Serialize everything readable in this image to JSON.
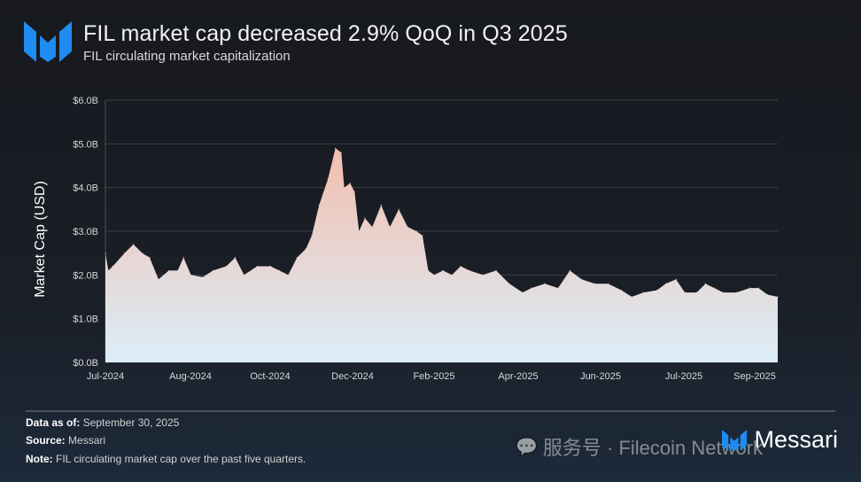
{
  "header": {
    "title": "FIL market cap decreased 2.9% QoQ in Q3 2025",
    "subtitle": "FIL circulating market capitalization",
    "logo": "Messari"
  },
  "chart_data": {
    "type": "area",
    "title": "FIL market cap decreased 2.9% QoQ in Q3 2025",
    "subtitle": "FIL circulating market capitalization",
    "xlabel": "",
    "ylabel": "Market Cap (USD)",
    "ylim": [
      0,
      6
    ],
    "y_unit": "USD billions",
    "y_ticks": [
      "$0.0B",
      "$1.0B",
      "$2.0B",
      "$3.0B",
      "$4.0B",
      "$5.0B",
      "$6.0B"
    ],
    "x_ticks": [
      "Jul-2024",
      "Aug-2024",
      "Oct-2024",
      "Dec-2024",
      "Feb-2025",
      "Apr-2025",
      "Jun-2025",
      "Jul-2025",
      "Sep-2025"
    ],
    "xlim": [
      "2024-07-01",
      "2025-09-30"
    ],
    "grid": true,
    "fill_colors": {
      "top": "#f2bfae",
      "bottom": "#dcedf8"
    },
    "series": [
      {
        "x": [
          "2024-07-01",
          "2024-07-03",
          "2024-07-06",
          "2024-07-14",
          "2024-07-20",
          "2024-07-26",
          "2024-07-31",
          "2024-08-06",
          "2024-08-13",
          "2024-08-19",
          "2024-08-23",
          "2024-08-28",
          "2024-09-05",
          "2024-09-12",
          "2024-09-21",
          "2024-09-27",
          "2024-10-03",
          "2024-10-12",
          "2024-10-21",
          "2024-10-27",
          "2024-11-02",
          "2024-11-08",
          "2024-11-14",
          "2024-11-18",
          "2024-11-23",
          "2024-11-29",
          "2024-12-04",
          "2024-12-08",
          "2024-12-10",
          "2024-12-14",
          "2024-12-17",
          "2024-12-20",
          "2024-12-24",
          "2024-12-29",
          "2025-01-04",
          "2025-01-10",
          "2025-01-16",
          "2025-01-22",
          "2025-01-28",
          "2025-02-01",
          "2025-02-05",
          "2025-02-09",
          "2025-02-15",
          "2025-02-21",
          "2025-02-27",
          "2025-03-05",
          "2025-03-14",
          "2025-03-23",
          "2025-04-01",
          "2025-04-10",
          "2025-04-16",
          "2025-04-25",
          "2025-05-04",
          "2025-05-12",
          "2025-05-20",
          "2025-05-29",
          "2025-06-07",
          "2025-06-16",
          "2025-06-23",
          "2025-07-01",
          "2025-07-10",
          "2025-07-16",
          "2025-07-23",
          "2025-07-29",
          "2025-08-06",
          "2025-08-12",
          "2025-08-18",
          "2025-08-24",
          "2025-09-02",
          "2025-09-11",
          "2025-09-17",
          "2025-09-23",
          "2025-09-30"
        ],
        "y": [
          2.5,
          2.1,
          2.2,
          2.5,
          2.7,
          2.5,
          2.4,
          1.9,
          2.1,
          2.1,
          2.4,
          2.0,
          1.95,
          2.1,
          2.2,
          2.4,
          2.0,
          2.2,
          2.2,
          2.1,
          2.0,
          2.4,
          2.6,
          2.9,
          3.6,
          4.2,
          4.9,
          4.8,
          4.0,
          4.1,
          3.9,
          3.0,
          3.3,
          3.1,
          3.6,
          3.1,
          3.5,
          3.1,
          3.0,
          2.9,
          2.1,
          2.0,
          2.1,
          2.0,
          2.2,
          2.1,
          2.0,
          2.1,
          1.8,
          1.6,
          1.7,
          1.8,
          1.7,
          2.1,
          1.9,
          1.8,
          1.8,
          1.65,
          1.5,
          1.6,
          1.65,
          1.8,
          1.9,
          1.6,
          1.6,
          1.8,
          1.7,
          1.6,
          1.6,
          1.7,
          1.7,
          1.55,
          1.5
        ]
      }
    ]
  },
  "footer": {
    "data_as_of_label": "Data as of:",
    "data_as_of_value": "September 30, 2025",
    "source_label": "Source:",
    "source_value": "Messari",
    "note_label": "Note:",
    "note_value": "FIL circulating market cap over the past five quarters.",
    "brand": "Messari",
    "watermark": "服务号 · Filecoin Network"
  }
}
